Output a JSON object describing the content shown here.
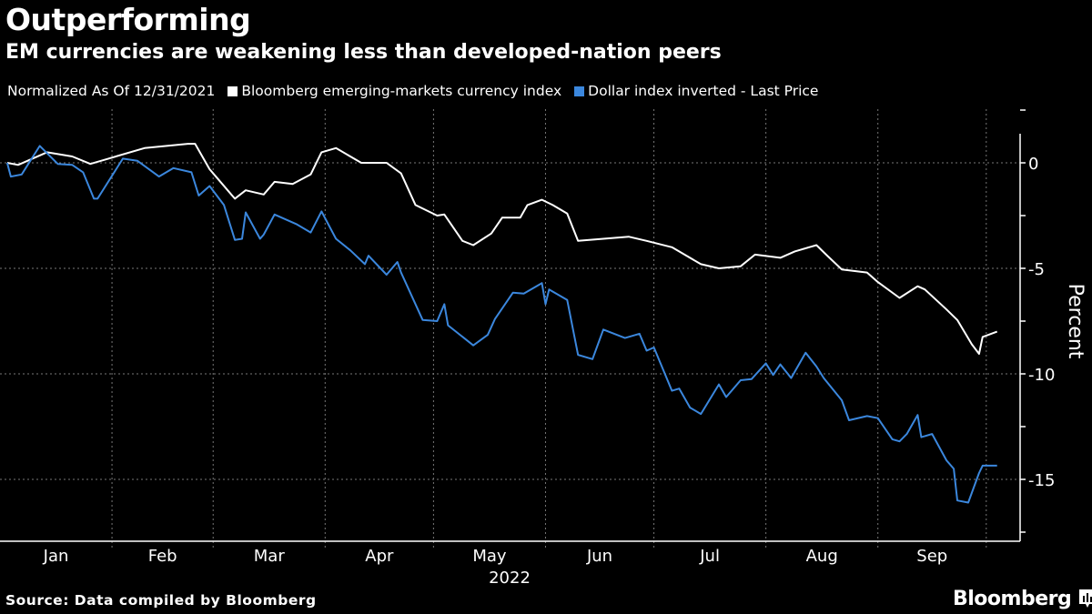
{
  "header": {
    "title": "Outperforming",
    "subtitle": "EM currencies are weakening less than developed-nation peers"
  },
  "legend": {
    "note": "Normalized As Of 12/31/2021",
    "items": [
      {
        "label": "Bloomberg emerging-markets currency index",
        "color": "#ffffff"
      },
      {
        "label": "Dollar index inverted - Last Price",
        "color": "#3b87dd"
      }
    ]
  },
  "footer": {
    "source": "Source: Data compiled by Bloomberg",
    "logo": "Bloomberg"
  },
  "chart_data": {
    "type": "line",
    "title": "Outperforming",
    "subtitle": "EM currencies are weakening less than developed-nation peers",
    "xlabel": "2022",
    "ylabel": "Percent",
    "x_ticks": [
      "Jan",
      "Feb",
      "Mar",
      "Apr",
      "May",
      "Jun",
      "Jul",
      "Aug",
      "Sep"
    ],
    "y_ticks": [
      0,
      -5,
      -10,
      -15
    ],
    "ylim": [
      -17.6,
      2.6
    ],
    "xlim": [
      "2022-01-01",
      "2022-10-07"
    ],
    "y_axis_side": "right",
    "grid": true,
    "legend_position": "top",
    "series": [
      {
        "name": "Bloomberg emerging-markets currency index",
        "color": "#ffffff",
        "points": [
          [
            "2022-01-03",
            0
          ],
          [
            "2022-01-06",
            -0.1
          ],
          [
            "2022-01-14",
            0.5
          ],
          [
            "2022-01-21",
            0.3
          ],
          [
            "2022-01-26",
            -0.05
          ],
          [
            "2022-01-31",
            0.2
          ],
          [
            "2022-02-10",
            0.7
          ],
          [
            "2022-02-22",
            0.9
          ],
          [
            "2022-02-24",
            0.9
          ],
          [
            "2022-02-28",
            -0.3
          ],
          [
            "2022-03-02",
            -0.7
          ],
          [
            "2022-03-07",
            -1.7
          ],
          [
            "2022-03-10",
            -1.3
          ],
          [
            "2022-03-15",
            -1.5
          ],
          [
            "2022-03-18",
            -0.9
          ],
          [
            "2022-03-23",
            -1.0
          ],
          [
            "2022-03-28",
            -0.55
          ],
          [
            "2022-03-31",
            0.5
          ],
          [
            "2022-04-04",
            0.7
          ],
          [
            "2022-04-11",
            0
          ],
          [
            "2022-04-18",
            0
          ],
          [
            "2022-04-22",
            -0.5
          ],
          [
            "2022-04-26",
            -2.0
          ],
          [
            "2022-05-02",
            -2.5
          ],
          [
            "2022-05-04",
            -2.45
          ],
          [
            "2022-05-09",
            -3.7
          ],
          [
            "2022-05-12",
            -3.9
          ],
          [
            "2022-05-17",
            -3.35
          ],
          [
            "2022-05-20",
            -2.6
          ],
          [
            "2022-05-25",
            -2.6
          ],
          [
            "2022-05-27",
            -2.0
          ],
          [
            "2022-05-31",
            -1.75
          ],
          [
            "2022-06-03",
            -2.0
          ],
          [
            "2022-06-07",
            -2.4
          ],
          [
            "2022-06-10",
            -3.7
          ],
          [
            "2022-06-17",
            -3.6
          ],
          [
            "2022-06-24",
            -3.5
          ],
          [
            "2022-06-29",
            -3.7
          ],
          [
            "2022-07-06",
            -4.0
          ],
          [
            "2022-07-14",
            -4.8
          ],
          [
            "2022-07-19",
            -5.0
          ],
          [
            "2022-07-25",
            -4.9
          ],
          [
            "2022-07-29",
            -4.35
          ],
          [
            "2022-08-05",
            -4.5
          ],
          [
            "2022-08-09",
            -4.2
          ],
          [
            "2022-08-15",
            -3.9
          ],
          [
            "2022-08-18",
            -4.4
          ],
          [
            "2022-08-22",
            -5.05
          ],
          [
            "2022-08-29",
            -5.2
          ],
          [
            "2022-09-01",
            -5.65
          ],
          [
            "2022-09-07",
            -6.4
          ],
          [
            "2022-09-12",
            -5.85
          ],
          [
            "2022-09-14",
            -6.0
          ],
          [
            "2022-09-20",
            -6.95
          ],
          [
            "2022-09-23",
            -7.45
          ],
          [
            "2022-09-27",
            -8.6
          ],
          [
            "2022-09-29",
            -9.05
          ],
          [
            "2022-09-30",
            -8.25
          ],
          [
            "2022-10-04",
            -8.0
          ]
        ]
      },
      {
        "name": "Dollar index inverted - Last Price",
        "color": "#3b87dd",
        "points": [
          [
            "2022-01-03",
            0
          ],
          [
            "2022-01-04",
            -0.65
          ],
          [
            "2022-01-07",
            -0.55
          ],
          [
            "2022-01-12",
            0.8
          ],
          [
            "2022-01-17",
            -0.05
          ],
          [
            "2022-01-21",
            -0.1
          ],
          [
            "2022-01-24",
            -0.45
          ],
          [
            "2022-01-27",
            -1.7
          ],
          [
            "2022-01-28",
            -1.7
          ],
          [
            "2022-02-04",
            0.2
          ],
          [
            "2022-02-08",
            0.1
          ],
          [
            "2022-02-14",
            -0.65
          ],
          [
            "2022-02-18",
            -0.25
          ],
          [
            "2022-02-23",
            -0.45
          ],
          [
            "2022-02-25",
            -1.55
          ],
          [
            "2022-02-28",
            -1.1
          ],
          [
            "2022-03-04",
            -2.0
          ],
          [
            "2022-03-07",
            -3.65
          ],
          [
            "2022-03-09",
            -3.6
          ],
          [
            "2022-03-10",
            -2.35
          ],
          [
            "2022-03-14",
            -3.6
          ],
          [
            "2022-03-15",
            -3.4
          ],
          [
            "2022-03-18",
            -2.45
          ],
          [
            "2022-03-24",
            -2.9
          ],
          [
            "2022-03-28",
            -3.3
          ],
          [
            "2022-03-31",
            -2.3
          ],
          [
            "2022-04-04",
            -3.6
          ],
          [
            "2022-04-08",
            -4.15
          ],
          [
            "2022-04-12",
            -4.8
          ],
          [
            "2022-04-13",
            -4.4
          ],
          [
            "2022-04-18",
            -5.3
          ],
          [
            "2022-04-21",
            -4.7
          ],
          [
            "2022-04-22",
            -5.2
          ],
          [
            "2022-04-28",
            -7.45
          ],
          [
            "2022-05-02",
            -7.5
          ],
          [
            "2022-05-04",
            -6.7
          ],
          [
            "2022-05-05",
            -7.7
          ],
          [
            "2022-05-12",
            -8.65
          ],
          [
            "2022-05-16",
            -8.15
          ],
          [
            "2022-05-18",
            -7.4
          ],
          [
            "2022-05-23",
            -6.15
          ],
          [
            "2022-05-26",
            -6.2
          ],
          [
            "2022-05-31",
            -5.7
          ],
          [
            "2022-06-01",
            -6.7
          ],
          [
            "2022-06-02",
            -6.0
          ],
          [
            "2022-06-07",
            -6.5
          ],
          [
            "2022-06-10",
            -9.1
          ],
          [
            "2022-06-14",
            -9.3
          ],
          [
            "2022-06-17",
            -7.9
          ],
          [
            "2022-06-23",
            -8.3
          ],
          [
            "2022-06-27",
            -8.1
          ],
          [
            "2022-06-29",
            -8.9
          ],
          [
            "2022-07-01",
            -8.75
          ],
          [
            "2022-07-06",
            -10.8
          ],
          [
            "2022-07-08",
            -10.7
          ],
          [
            "2022-07-11",
            -11.6
          ],
          [
            "2022-07-14",
            -11.9
          ],
          [
            "2022-07-19",
            -10.5
          ],
          [
            "2022-07-21",
            -11.1
          ],
          [
            "2022-07-25",
            -10.3
          ],
          [
            "2022-07-28",
            -10.25
          ],
          [
            "2022-08-01",
            -9.5
          ],
          [
            "2022-08-03",
            -10.05
          ],
          [
            "2022-08-05",
            -9.55
          ],
          [
            "2022-08-08",
            -10.2
          ],
          [
            "2022-08-12",
            -9.0
          ],
          [
            "2022-08-15",
            -9.65
          ],
          [
            "2022-08-17",
            -10.2
          ],
          [
            "2022-08-22",
            -11.25
          ],
          [
            "2022-08-24",
            -12.2
          ],
          [
            "2022-08-29",
            -12.0
          ],
          [
            "2022-09-01",
            -12.1
          ],
          [
            "2022-09-05",
            -13.1
          ],
          [
            "2022-09-07",
            -13.2
          ],
          [
            "2022-09-09",
            -12.85
          ],
          [
            "2022-09-12",
            -11.95
          ],
          [
            "2022-09-13",
            -13.0
          ],
          [
            "2022-09-16",
            -12.85
          ],
          [
            "2022-09-20",
            -14.1
          ],
          [
            "2022-09-22",
            -14.5
          ],
          [
            "2022-09-23",
            -16.0
          ],
          [
            "2022-09-26",
            -16.1
          ],
          [
            "2022-09-29",
            -14.7
          ],
          [
            "2022-09-30",
            -14.35
          ],
          [
            "2022-10-04",
            -14.35
          ]
        ]
      }
    ]
  }
}
